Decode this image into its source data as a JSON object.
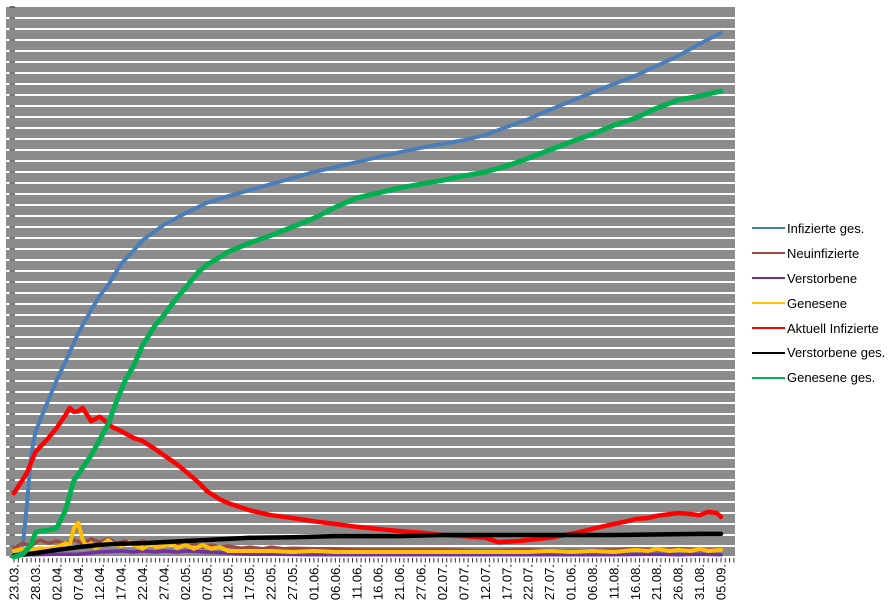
{
  "plot": {
    "bg_color": "#8B8B8B",
    "gridline_color": "#FFFFFF",
    "y_tick_color": "#595959",
    "x_tick_color": "#333333",
    "text_color": "#000000"
  },
  "legend": {
    "position": "right"
  },
  "chart_data": {
    "type": "line",
    "title": "",
    "xlabel": "",
    "ylabel": "",
    "y_axis": {
      "labels_visible": false,
      "unit": "percent-of-plot-height",
      "range": [
        0,
        100
      ],
      "gridline_count": 50,
      "grid": "on"
    },
    "x_axis": {
      "total_days": 165,
      "label_every_days": 5,
      "minor_tick_every_days": 1,
      "tick_labels": [
        "23.03.",
        "28.03.",
        "02.04.",
        "07.04.",
        "12.04.",
        "17.04.",
        "22.04.",
        "27.04.",
        "02.05.",
        "07.05.",
        "12.05.",
        "17.05.",
        "22.05.",
        "27.05.",
        "01.06.",
        "06.06.",
        "11.06.",
        "16.06.",
        "21.06.",
        "27.06.",
        "02.07.",
        "07.07.",
        "12.07.",
        "17.07.",
        "22.07.",
        "27.07.",
        "01.06.",
        "06.08.",
        "11.08.",
        "16.08.",
        "21.08.",
        "26.08.",
        "31.08.",
        "05.09."
      ]
    },
    "series": [
      {
        "id": "infizierte-ges",
        "name": "Infizierte ges.",
        "color": "#4A7EBB",
        "stroke_width": 4,
        "points": [
          [
            0,
            0.2
          ],
          [
            1,
            0.7
          ],
          [
            2,
            1.6
          ],
          [
            3,
            9.5
          ],
          [
            4,
            18.5
          ],
          [
            5,
            22.7
          ],
          [
            6,
            24.7
          ],
          [
            8,
            28.5
          ],
          [
            10,
            32.2
          ],
          [
            12,
            35.5
          ],
          [
            15,
            40.7
          ],
          [
            18,
            44.9
          ],
          [
            20,
            47.5
          ],
          [
            22,
            49.5
          ],
          [
            25,
            53.3
          ],
          [
            28,
            55.8
          ],
          [
            30,
            57.6
          ],
          [
            33,
            59.3
          ],
          [
            35,
            60.4
          ],
          [
            40,
            62.5
          ],
          [
            45,
            64.4
          ],
          [
            50,
            65.6
          ],
          [
            55,
            66.7
          ],
          [
            60,
            67.8
          ],
          [
            65,
            68.9
          ],
          [
            70,
            70.0
          ],
          [
            75,
            70.9
          ],
          [
            80,
            71.8
          ],
          [
            85,
            72.7
          ],
          [
            90,
            73.6
          ],
          [
            95,
            74.4
          ],
          [
            100,
            75.1
          ],
          [
            105,
            75.8
          ],
          [
            110,
            76.7
          ],
          [
            115,
            78.2
          ],
          [
            120,
            79.6
          ],
          [
            125,
            81.3
          ],
          [
            130,
            82.9
          ],
          [
            135,
            84.5
          ],
          [
            140,
            86.0
          ],
          [
            145,
            87.5
          ],
          [
            150,
            89.3
          ],
          [
            155,
            91.1
          ],
          [
            160,
            93.3
          ],
          [
            165,
            95.3
          ]
        ]
      },
      {
        "id": "neuinfizierte",
        "name": "Neuinfizierte",
        "color": "#9A4A45",
        "stroke_width": 3.5,
        "points": [
          [
            0,
            1.6
          ],
          [
            2,
            2.5
          ],
          [
            4,
            2.0
          ],
          [
            6,
            3.1
          ],
          [
            8,
            2.5
          ],
          [
            10,
            2.9
          ],
          [
            12,
            2.4
          ],
          [
            14,
            3.1
          ],
          [
            16,
            2.5
          ],
          [
            18,
            3.3
          ],
          [
            20,
            2.7
          ],
          [
            22,
            3.3
          ],
          [
            24,
            2.5
          ],
          [
            26,
            2.9
          ],
          [
            28,
            2.4
          ],
          [
            30,
            2.9
          ],
          [
            32,
            2.4
          ],
          [
            34,
            2.7
          ],
          [
            36,
            2.2
          ],
          [
            38,
            2.5
          ],
          [
            40,
            2.0
          ],
          [
            42,
            2.4
          ],
          [
            44,
            1.8
          ],
          [
            46,
            2.2
          ],
          [
            48,
            1.8
          ],
          [
            50,
            2.0
          ],
          [
            53,
            1.6
          ],
          [
            55,
            1.8
          ],
          [
            58,
            1.5
          ],
          [
            60,
            1.8
          ],
          [
            63,
            1.5
          ],
          [
            65,
            1.6
          ],
          [
            70,
            1.5
          ],
          [
            75,
            1.5
          ],
          [
            80,
            1.3
          ],
          [
            90,
            1.3
          ],
          [
            100,
            1.3
          ],
          [
            110,
            1.1
          ],
          [
            120,
            1.3
          ],
          [
            130,
            1.1
          ],
          [
            140,
            1.3
          ],
          [
            145,
            1.5
          ],
          [
            150,
            1.3
          ],
          [
            155,
            1.5
          ],
          [
            160,
            1.3
          ],
          [
            165,
            1.3
          ]
        ]
      },
      {
        "id": "verstorbene",
        "name": "Verstorbene",
        "color": "#7030A0",
        "stroke_width": 3.5,
        "points": [
          [
            0,
            0.4
          ],
          [
            5,
            0.4
          ],
          [
            10,
            0.5
          ],
          [
            15,
            0.5
          ],
          [
            20,
            0.9
          ],
          [
            25,
            1.1
          ],
          [
            28,
            0.9
          ],
          [
            30,
            1.1
          ],
          [
            33,
            0.9
          ],
          [
            35,
            1.1
          ],
          [
            38,
            0.9
          ],
          [
            40,
            1.1
          ],
          [
            45,
            0.9
          ],
          [
            50,
            0.7
          ],
          [
            55,
            0.5
          ],
          [
            60,
            0.5
          ],
          [
            70,
            0.4
          ],
          [
            80,
            0.4
          ],
          [
            90,
            0.4
          ],
          [
            100,
            0.4
          ],
          [
            110,
            0.4
          ],
          [
            120,
            0.4
          ],
          [
            130,
            0.4
          ],
          [
            140,
            0.4
          ],
          [
            150,
            0.5
          ],
          [
            155,
            0.4
          ],
          [
            160,
            0.5
          ],
          [
            165,
            0.4
          ]
        ]
      },
      {
        "id": "genesene",
        "name": "Genesene",
        "color": "#FFC000",
        "stroke_width": 4,
        "points": [
          [
            0,
            1.1
          ],
          [
            2,
            1.5
          ],
          [
            4,
            1.3
          ],
          [
            6,
            1.6
          ],
          [
            8,
            1.5
          ],
          [
            10,
            1.8
          ],
          [
            12,
            2.5
          ],
          [
            13,
            2.2
          ],
          [
            14,
            5.3
          ],
          [
            15,
            6.2
          ],
          [
            16,
            3.1
          ],
          [
            17,
            2.0
          ],
          [
            18,
            2.5
          ],
          [
            19,
            1.6
          ],
          [
            20,
            2.0
          ],
          [
            22,
            3.1
          ],
          [
            23,
            2.4
          ],
          [
            25,
            2.0
          ],
          [
            27,
            2.7
          ],
          [
            28,
            2.2
          ],
          [
            30,
            1.5
          ],
          [
            32,
            2.4
          ],
          [
            33,
            1.8
          ],
          [
            35,
            2.0
          ],
          [
            37,
            2.5
          ],
          [
            38,
            1.6
          ],
          [
            40,
            2.2
          ],
          [
            42,
            1.5
          ],
          [
            44,
            2.2
          ],
          [
            46,
            1.5
          ],
          [
            48,
            1.8
          ],
          [
            50,
            1.1
          ],
          [
            55,
            1.1
          ],
          [
            60,
            1.1
          ],
          [
            65,
            0.9
          ],
          [
            70,
            1.1
          ],
          [
            75,
            0.9
          ],
          [
            80,
            0.9
          ],
          [
            90,
            0.9
          ],
          [
            100,
            0.9
          ],
          [
            110,
            0.9
          ],
          [
            120,
            0.9
          ],
          [
            125,
            1.1
          ],
          [
            130,
            0.9
          ],
          [
            135,
            1.1
          ],
          [
            140,
            0.9
          ],
          [
            145,
            1.3
          ],
          [
            148,
            1.1
          ],
          [
            150,
            1.5
          ],
          [
            153,
            1.1
          ],
          [
            155,
            1.3
          ],
          [
            158,
            1.1
          ],
          [
            160,
            1.5
          ],
          [
            162,
            1.1
          ],
          [
            165,
            1.3
          ]
        ]
      },
      {
        "id": "aktuell-infizierte",
        "name": "Aktuell Infizierte",
        "color": "#FF0000",
        "stroke_width": 4.5,
        "points": [
          [
            0,
            11.6
          ],
          [
            3,
            15.3
          ],
          [
            5,
            19.1
          ],
          [
            8,
            21.6
          ],
          [
            10,
            23.5
          ],
          [
            12,
            25.8
          ],
          [
            13,
            27.1
          ],
          [
            14,
            26.4
          ],
          [
            15,
            26.5
          ],
          [
            16,
            27.1
          ],
          [
            18,
            24.7
          ],
          [
            20,
            25.5
          ],
          [
            21,
            24.9
          ],
          [
            23,
            23.6
          ],
          [
            25,
            22.9
          ],
          [
            28,
            21.6
          ],
          [
            30,
            21.1
          ],
          [
            33,
            19.6
          ],
          [
            35,
            18.5
          ],
          [
            38,
            16.9
          ],
          [
            40,
            15.6
          ],
          [
            43,
            13.6
          ],
          [
            45,
            12.0
          ],
          [
            48,
            10.5
          ],
          [
            50,
            9.8
          ],
          [
            55,
            8.5
          ],
          [
            60,
            7.6
          ],
          [
            65,
            7.1
          ],
          [
            70,
            6.5
          ],
          [
            75,
            6.0
          ],
          [
            80,
            5.5
          ],
          [
            85,
            5.1
          ],
          [
            90,
            4.7
          ],
          [
            95,
            4.4
          ],
          [
            100,
            4.0
          ],
          [
            105,
            3.8
          ],
          [
            110,
            3.5
          ],
          [
            113,
            2.7
          ],
          [
            118,
            2.9
          ],
          [
            120,
            3.1
          ],
          [
            125,
            3.5
          ],
          [
            130,
            4.2
          ],
          [
            133,
            4.7
          ],
          [
            137,
            5.5
          ],
          [
            140,
            6.0
          ],
          [
            143,
            6.5
          ],
          [
            145,
            6.9
          ],
          [
            148,
            7.1
          ],
          [
            150,
            7.5
          ],
          [
            153,
            7.8
          ],
          [
            155,
            8.0
          ],
          [
            158,
            7.8
          ],
          [
            160,
            7.6
          ],
          [
            162,
            8.2
          ],
          [
            164,
            8.0
          ],
          [
            165,
            7.3
          ]
        ]
      },
      {
        "id": "verstorbene-ges",
        "name": "Verstorbene ges.",
        "color": "#000000",
        "stroke_width": 4.5,
        "points": [
          [
            0,
            0.2
          ],
          [
            5,
            0.7
          ],
          [
            10,
            1.3
          ],
          [
            15,
            1.8
          ],
          [
            20,
            2.2
          ],
          [
            25,
            2.4
          ],
          [
            30,
            2.5
          ],
          [
            35,
            2.7
          ],
          [
            40,
            2.9
          ],
          [
            45,
            3.1
          ],
          [
            50,
            3.3
          ],
          [
            55,
            3.5
          ],
          [
            65,
            3.6
          ],
          [
            75,
            3.8
          ],
          [
            90,
            3.8
          ],
          [
            100,
            4.0
          ],
          [
            120,
            4.0
          ],
          [
            140,
            4.0
          ],
          [
            160,
            4.2
          ],
          [
            165,
            4.2
          ]
        ]
      },
      {
        "id": "genesene-ges",
        "name": "Genesene ges.",
        "color": "#00B050",
        "stroke_width": 5,
        "points": [
          [
            0,
            0.0
          ],
          [
            2,
            0.5
          ],
          [
            4,
            2.2
          ],
          [
            5,
            4.4
          ],
          [
            6,
            4.7
          ],
          [
            8,
            4.9
          ],
          [
            10,
            5.3
          ],
          [
            12,
            8.5
          ],
          [
            14,
            14.0
          ],
          [
            16,
            16.2
          ],
          [
            18,
            18.5
          ],
          [
            20,
            21.3
          ],
          [
            22,
            24.2
          ],
          [
            24,
            28.5
          ],
          [
            26,
            32.2
          ],
          [
            28,
            34.9
          ],
          [
            30,
            38.5
          ],
          [
            33,
            42.2
          ],
          [
            35,
            44.0
          ],
          [
            38,
            47.1
          ],
          [
            40,
            48.9
          ],
          [
            43,
            51.8
          ],
          [
            45,
            53.1
          ],
          [
            48,
            54.5
          ],
          [
            50,
            55.5
          ],
          [
            55,
            57.1
          ],
          [
            60,
            58.5
          ],
          [
            65,
            60.0
          ],
          [
            70,
            61.6
          ],
          [
            75,
            63.6
          ],
          [
            80,
            65.3
          ],
          [
            85,
            66.2
          ],
          [
            90,
            67.1
          ],
          [
            95,
            67.8
          ],
          [
            100,
            68.5
          ],
          [
            105,
            69.3
          ],
          [
            110,
            70.0
          ],
          [
            115,
            71.1
          ],
          [
            120,
            72.5
          ],
          [
            125,
            74.0
          ],
          [
            130,
            75.5
          ],
          [
            135,
            76.9
          ],
          [
            140,
            78.5
          ],
          [
            145,
            79.8
          ],
          [
            150,
            81.6
          ],
          [
            155,
            83.1
          ],
          [
            160,
            83.8
          ],
          [
            165,
            84.7
          ]
        ]
      }
    ]
  }
}
